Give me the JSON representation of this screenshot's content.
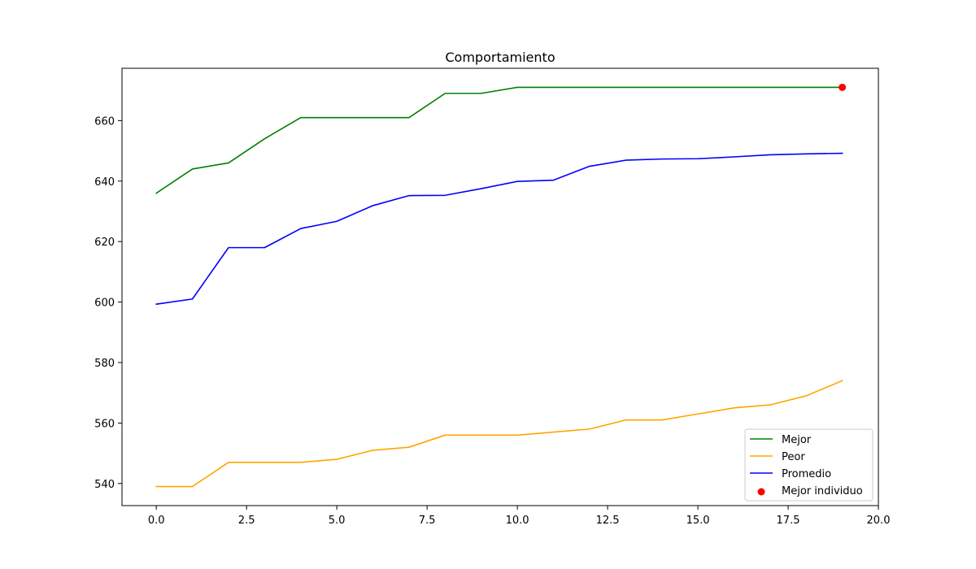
{
  "chart_data": {
    "type": "line",
    "title": "Comportamiento",
    "xlabel": "",
    "ylabel": "",
    "xlim": [
      -0.95,
      20.0
    ],
    "ylim": [
      532.7,
      677.3
    ],
    "x_ticks": [
      0.0,
      2.5,
      5.0,
      7.5,
      10.0,
      12.5,
      15.0,
      17.5,
      20.0
    ],
    "x_tick_labels": [
      "0.0",
      "2.5",
      "5.0",
      "7.5",
      "10.0",
      "12.5",
      "15.0",
      "17.5",
      "20.0"
    ],
    "y_ticks": [
      540,
      560,
      580,
      600,
      620,
      640,
      660
    ],
    "y_tick_labels": [
      "540",
      "560",
      "580",
      "600",
      "620",
      "640",
      "660"
    ],
    "grid": false,
    "legend_position": "bottom-right",
    "x": [
      0,
      1,
      2,
      3,
      4,
      5,
      6,
      7,
      8,
      9,
      10,
      11,
      12,
      13,
      14,
      15,
      16,
      17,
      18,
      19
    ],
    "series": [
      {
        "name": "Mejor",
        "color": "#008000",
        "values": [
          636,
          644,
          646,
          654,
          661,
          661,
          661,
          661,
          669,
          669,
          671,
          671,
          671,
          671,
          671,
          671,
          671,
          671,
          671,
          671
        ]
      },
      {
        "name": "Peor",
        "color": "#ffa500",
        "values": [
          539,
          539,
          547,
          547,
          547,
          548,
          551,
          552,
          556,
          556,
          556,
          557,
          558,
          561,
          561,
          563,
          565,
          566,
          569,
          574
        ]
      },
      {
        "name": "Promedio",
        "color": "#0000ff",
        "values": [
          599.3,
          601,
          618,
          618,
          624.3,
          626.7,
          631.9,
          635.2,
          635.3,
          637.5,
          639.9,
          640.3,
          644.9,
          646.9,
          647.3,
          647.4,
          648,
          648.7,
          649,
          649.2
        ]
      }
    ],
    "scatter": {
      "name": "Mejor individuo",
      "color": "#ff0000",
      "x": 19,
      "y": 671
    }
  }
}
